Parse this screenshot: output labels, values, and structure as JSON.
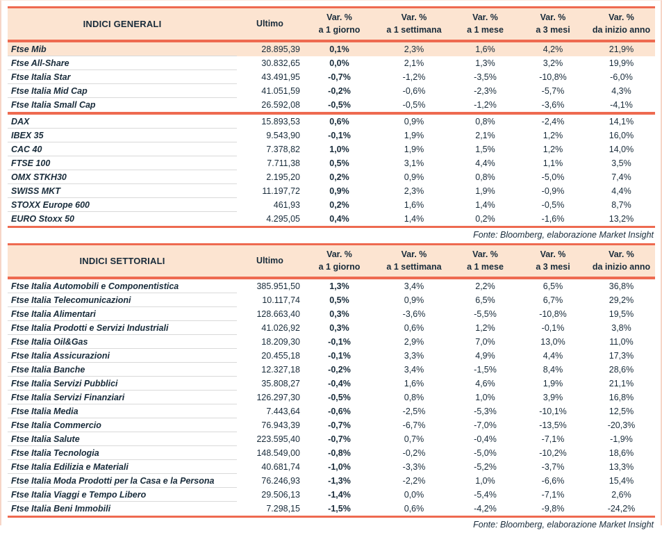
{
  "colors": {
    "accent_coral": "#ee6a50",
    "header_peach": "#fce4d1",
    "highlight_peach": "#fce4d1",
    "text_navy": "#182b3a",
    "row_separator_gray": "#d9d9d9",
    "page_frame_pink": "#f6d5c7"
  },
  "chart_data": [
    {
      "type": "table",
      "title": "INDICI GENERALI",
      "ultimo_label": "Ultimo",
      "var_label": "Var. %",
      "periods": [
        "a 1 giorno",
        "a 1 settimana",
        "a 1 mese",
        "a 3 mesi",
        "da inizio anno"
      ],
      "columns": [
        "INDICI GENERALI",
        "Ultimo",
        "Var. % a 1 giorno",
        "Var. % a 1 settimana",
        "Var. % a 1 mese",
        "Var. % a 3 mesi",
        "Var. % da inizio anno"
      ],
      "highlight": "Ftse Mib",
      "source": "Fonte: Bloomberg, elaborazione Market Insight",
      "groups": [
        [
          [
            "Ftse Mib",
            "28.895,39",
            "0,1%",
            "2,3%",
            "1,6%",
            "4,2%",
            "21,9%"
          ],
          [
            "Ftse All-Share",
            "30.832,65",
            "0,0%",
            "2,1%",
            "1,3%",
            "3,2%",
            "19,9%"
          ],
          [
            "Ftse Italia Star",
            "43.491,95",
            "-0,7%",
            "-1,2%",
            "-3,5%",
            "-10,8%",
            "-6,0%"
          ],
          [
            "Ftse Italia Mid Cap",
            "41.051,59",
            "-0,2%",
            "-0,6%",
            "-2,3%",
            "-5,7%",
            "4,3%"
          ],
          [
            "Ftse Italia Small Cap",
            "26.592,08",
            "-0,5%",
            "-0,5%",
            "-1,2%",
            "-3,6%",
            "-4,1%"
          ]
        ],
        [
          [
            "DAX",
            "15.893,53",
            "0,6%",
            "0,9%",
            "0,8%",
            "-2,4%",
            "14,1%"
          ],
          [
            "IBEX 35",
            "9.543,90",
            "-0,1%",
            "1,9%",
            "2,1%",
            "1,2%",
            "16,0%"
          ],
          [
            "CAC 40",
            "7.378,82",
            "1,0%",
            "1,9%",
            "1,5%",
            "1,2%",
            "14,0%"
          ],
          [
            "FTSE 100",
            "7.711,38",
            "0,5%",
            "3,1%",
            "4,4%",
            "1,1%",
            "3,5%"
          ],
          [
            "OMX STKH30",
            "2.195,20",
            "0,2%",
            "0,9%",
            "0,8%",
            "-5,0%",
            "7,4%"
          ],
          [
            "SWISS MKT",
            "11.197,72",
            "0,9%",
            "2,3%",
            "1,9%",
            "-0,9%",
            "4,4%"
          ],
          [
            "STOXX Europe 600",
            "461,93",
            "0,2%",
            "1,6%",
            "1,4%",
            "-0,5%",
            "8,7%"
          ],
          [
            "EURO Stoxx 50",
            "4.295,05",
            "0,4%",
            "1,4%",
            "0,2%",
            "-1,6%",
            "13,2%"
          ]
        ]
      ]
    },
    {
      "type": "table",
      "title": "INDICI SETTORIALI",
      "ultimo_label": "Ultimo",
      "var_label": "Var. %",
      "periods": [
        "a 1 giorno",
        "a 1 settimana",
        "a 1 mese",
        "a 3 mesi",
        "da inizio anno"
      ],
      "columns": [
        "INDICI SETTORIALI",
        "Ultimo",
        "Var. % a 1 giorno",
        "Var. % a 1 settimana",
        "Var. % a 1 mese",
        "Var. % a 3 mesi",
        "Var. % da inizio anno"
      ],
      "highlight": "",
      "source": "Fonte: Bloomberg, elaborazione Market Insight",
      "groups": [
        [
          [
            "Ftse Italia Automobili e Componentistica",
            "385.951,50",
            "1,3%",
            "3,4%",
            "2,2%",
            "6,5%",
            "36,8%"
          ],
          [
            "Ftse Italia Telecomunicazioni",
            "10.117,74",
            "0,5%",
            "0,9%",
            "6,5%",
            "6,7%",
            "29,2%"
          ],
          [
            "Ftse Italia Alimentari",
            "128.663,40",
            "0,3%",
            "-3,6%",
            "-5,5%",
            "-10,8%",
            "19,5%"
          ],
          [
            "Ftse Italia Prodotti e Servizi Industriali",
            "41.026,92",
            "0,3%",
            "0,6%",
            "1,2%",
            "-0,1%",
            "3,8%"
          ],
          [
            "Ftse Italia Oil&Gas",
            "18.209,30",
            "-0,1%",
            "2,9%",
            "7,0%",
            "13,0%",
            "11,0%"
          ],
          [
            "Ftse Italia Assicurazioni",
            "20.455,18",
            "-0,1%",
            "3,3%",
            "4,9%",
            "4,4%",
            "17,3%"
          ],
          [
            "Ftse Italia Banche",
            "12.327,18",
            "-0,2%",
            "3,4%",
            "-1,5%",
            "8,4%",
            "28,6%"
          ],
          [
            "Ftse Italia Servizi Pubblici",
            "35.808,27",
            "-0,4%",
            "1,6%",
            "4,6%",
            "1,9%",
            "21,1%"
          ],
          [
            "Ftse Italia Servizi Finanziari",
            "126.297,30",
            "-0,5%",
            "0,8%",
            "1,0%",
            "3,9%",
            "16,8%"
          ],
          [
            "Ftse Italia Media",
            "7.443,64",
            "-0,6%",
            "-2,5%",
            "-5,3%",
            "-10,1%",
            "12,5%"
          ],
          [
            "Ftse Italia Commercio",
            "76.943,39",
            "-0,7%",
            "-6,7%",
            "-7,0%",
            "-13,5%",
            "-20,3%"
          ],
          [
            "Ftse Italia Salute",
            "223.595,40",
            "-0,7%",
            "0,7%",
            "-0,4%",
            "-7,1%",
            "-1,9%"
          ],
          [
            "Ftse Italia Tecnologia",
            "148.549,00",
            "-0,8%",
            "-0,2%",
            "-5,0%",
            "-10,2%",
            "18,6%"
          ],
          [
            "Ftse Italia Edilizia e Materiali",
            "40.681,74",
            "-1,0%",
            "-3,3%",
            "-5,2%",
            "-3,7%",
            "13,3%"
          ],
          [
            "Ftse Italia Moda Prodotti per la Casa e la Persona",
            "76.246,93",
            "-1,3%",
            "-2,2%",
            "1,0%",
            "-6,6%",
            "15,4%"
          ],
          [
            "Ftse Italia Viaggi e Tempo Libero",
            "29.506,13",
            "-1,4%",
            "0,0%",
            "-5,4%",
            "-7,1%",
            "2,6%"
          ],
          [
            "Ftse Italia Beni Immobili",
            "7.298,15",
            "-1,5%",
            "0,6%",
            "-4,2%",
            "-9,8%",
            "-24,2%"
          ]
        ]
      ]
    }
  ]
}
